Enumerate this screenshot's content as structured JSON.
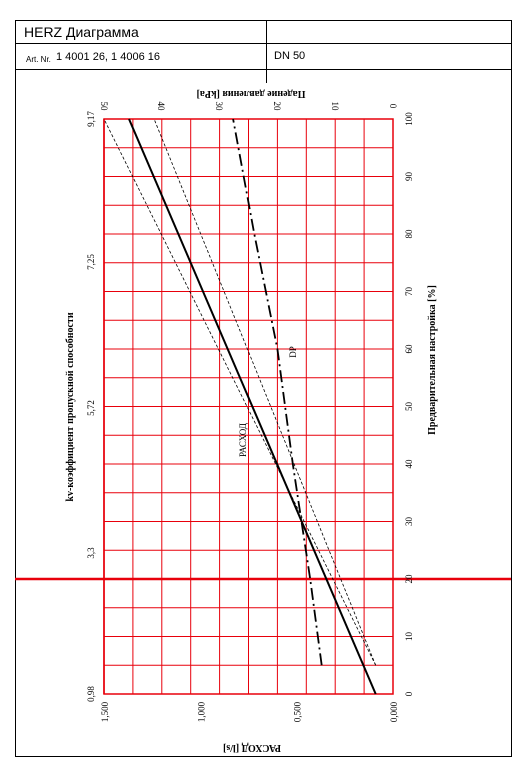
{
  "header": {
    "title": "HERZ Диаграмма",
    "art_label": "Art. Nr.",
    "art_numbers": "1 4001 26, 1 4006 16",
    "dn": "DN 50"
  },
  "chart_data": {
    "type": "line",
    "orientation": "rotated-90",
    "ylabel_left": "kv-коэффициент пропускной способности",
    "ylabel_right": "Предварительная настройка [%]",
    "xlabel_bottom": "РАСХОД [l/s]",
    "xlabel_top": "Падение давления [kPa]",
    "setting_ticks": [
      "0",
      "10",
      "20",
      "30",
      "40",
      "50",
      "60",
      "70",
      "80",
      "90",
      "100"
    ],
    "flow_ticks": [
      "1,500",
      "1,000",
      "0,500",
      "0,000"
    ],
    "dp_ticks": [
      "50",
      "40",
      "30",
      "20",
      "10",
      "0"
    ],
    "kv_ticks": [
      "0,98",
      "3,3",
      "5,72",
      "7,25",
      "9,17"
    ],
    "highlight_setting": 20,
    "series": [
      {
        "name": "РАСХОД",
        "style": "solid",
        "x": [
          0.0,
          100.0
        ],
        "y": [
          0.09,
          1.37
        ]
      },
      {
        "name": "",
        "style": "dashed",
        "x": [
          5.0,
          100.0
        ],
        "y": [
          0.09,
          1.5
        ]
      },
      {
        "name": "",
        "style": "dashed",
        "x": [
          5.0,
          100.0
        ],
        "y": [
          0.09,
          1.24
        ]
      },
      {
        "name": "DP",
        "style": "dash-dot",
        "x": [
          5.0,
          20.0,
          40.0,
          60.0,
          80.0,
          100.0
        ],
        "y": [
          0.37,
          0.43,
          0.52,
          0.6,
          0.72,
          0.83
        ]
      }
    ]
  }
}
